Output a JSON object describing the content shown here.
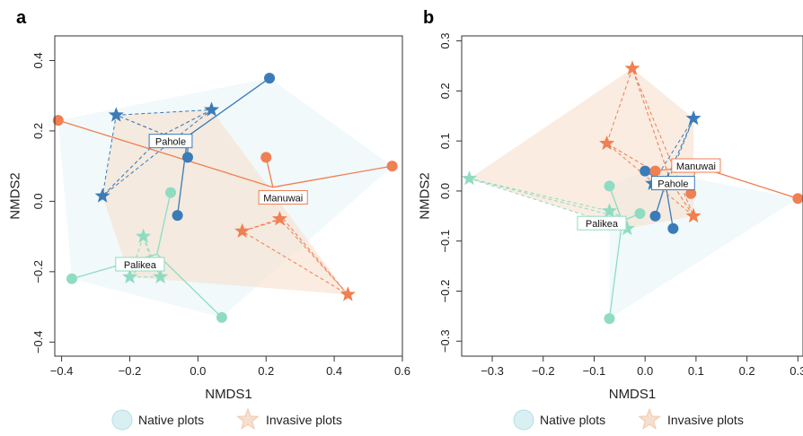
{
  "colors": {
    "pahole": "#3a7bb8",
    "manuwai": "#f07f52",
    "palikea": "#8fdcc2",
    "native_fill": "#e8f5f8",
    "invasive_fill": "#f7dfcd"
  },
  "legend": {
    "native_label": "Native plots",
    "invasive_label": "Invasive plots"
  },
  "chart_data": [
    {
      "panel_label": "a",
      "type": "scatter",
      "xlabel": "NMDS1",
      "ylabel": "NMDS2",
      "xlim": [
        -0.42,
        0.6
      ],
      "ylim": [
        -0.44,
        0.47
      ],
      "xticks": [
        -0.4,
        -0.2,
        0.0,
        0.2,
        0.4,
        0.6
      ],
      "yticks": [
        -0.4,
        -0.2,
        0.0,
        0.2,
        0.4
      ],
      "xtick_labels": [
        "−0.4",
        "−0.2",
        "0.0",
        "0.2",
        "0.4",
        "0.6"
      ],
      "ytick_labels": [
        "−0.4",
        "−0.2",
        "0.0",
        "0.2",
        "0.4"
      ],
      "sites": [
        {
          "name": "Pahole",
          "color_key": "pahole",
          "label_at": [
            -0.08,
            0.17
          ],
          "native_centroid": [
            -0.03,
            0.185
          ],
          "invasive_centroid": [
            -0.1,
            0.19
          ],
          "native": [
            [
              0.21,
              0.35
            ],
            [
              -0.03,
              0.125
            ],
            [
              -0.06,
              -0.04
            ]
          ],
          "invasive": [
            [
              -0.24,
              0.245
            ],
            [
              0.04,
              0.26
            ],
            [
              -0.28,
              0.015
            ]
          ]
        },
        {
          "name": "Manuwai",
          "color_key": "manuwai",
          "label_at": [
            0.25,
            0.01
          ],
          "native_centroid": [
            0.22,
            0.04
          ],
          "invasive_centroid": [
            0.25,
            -0.05
          ],
          "native": [
            [
              -0.41,
              0.23
            ],
            [
              0.2,
              0.125
            ],
            [
              0.57,
              0.1
            ]
          ],
          "invasive": [
            [
              0.13,
              -0.085
            ],
            [
              0.24,
              -0.05
            ],
            [
              0.44,
              -0.265
            ]
          ]
        },
        {
          "name": "Palikea",
          "color_key": "palikea",
          "label_at": [
            -0.17,
            -0.18
          ],
          "native_centroid": [
            -0.12,
            -0.15
          ],
          "invasive_centroid": [
            -0.14,
            -0.16
          ],
          "native": [
            [
              -0.08,
              0.025
            ],
            [
              -0.37,
              -0.22
            ],
            [
              0.07,
              -0.33
            ]
          ],
          "invasive": [
            [
              -0.16,
              -0.1
            ],
            [
              -0.2,
              -0.215
            ],
            [
              -0.11,
              -0.215
            ]
          ]
        }
      ]
    },
    {
      "panel_label": "b",
      "type": "scatter",
      "xlabel": "NMDS1",
      "ylabel": "NMDS2",
      "xlim": [
        -0.36,
        0.31
      ],
      "ylim": [
        -0.33,
        0.31
      ],
      "xticks": [
        -0.3,
        -0.2,
        -0.1,
        0.0,
        0.1,
        0.2,
        0.3
      ],
      "yticks": [
        -0.3,
        -0.2,
        -0.1,
        0.0,
        0.1,
        0.2,
        0.3
      ],
      "xtick_labels": [
        "−0.3",
        "−0.2",
        "−0.1",
        "0.0",
        "0.1",
        "0.2",
        "0.3"
      ],
      "ytick_labels": [
        "−0.3",
        "−0.2",
        "−0.1",
        "0.0",
        "0.1",
        "0.2",
        "0.3"
      ],
      "sites": [
        {
          "name": "Pahole",
          "color_key": "pahole",
          "label_at": [
            0.055,
            0.015
          ],
          "native_centroid": [
            0.04,
            0.015
          ],
          "invasive_centroid": [
            0.045,
            0.03
          ],
          "native": [
            [
              0.0,
              0.04
            ],
            [
              0.02,
              -0.05
            ],
            [
              0.055,
              -0.075
            ]
          ],
          "invasive": [
            [
              0.095,
              0.145
            ],
            [
              0.015,
              0.015
            ],
            [
              0.045,
              0.02
            ]
          ]
        },
        {
          "name": "Manuwai",
          "color_key": "manuwai",
          "label_at": [
            0.1,
            0.05
          ],
          "native_centroid": [
            0.1,
            0.05
          ],
          "invasive_centroid": [
            0.05,
            0.02
          ],
          "native": [
            [
              0.02,
              0.04
            ],
            [
              0.09,
              -0.005
            ],
            [
              0.3,
              -0.015
            ]
          ],
          "invasive": [
            [
              -0.025,
              0.245
            ],
            [
              -0.075,
              0.095
            ],
            [
              0.095,
              -0.05
            ]
          ]
        },
        {
          "name": "Palikea",
          "color_key": "palikea",
          "label_at": [
            -0.085,
            -0.065
          ],
          "native_centroid": [
            -0.045,
            -0.06
          ],
          "invasive_centroid": [
            -0.04,
            -0.055
          ],
          "native": [
            [
              -0.07,
              0.01
            ],
            [
              -0.01,
              -0.045
            ],
            [
              -0.07,
              -0.255
            ]
          ],
          "invasive": [
            [
              -0.345,
              0.025
            ],
            [
              -0.07,
              -0.04
            ],
            [
              -0.035,
              -0.075
            ]
          ]
        }
      ]
    }
  ]
}
